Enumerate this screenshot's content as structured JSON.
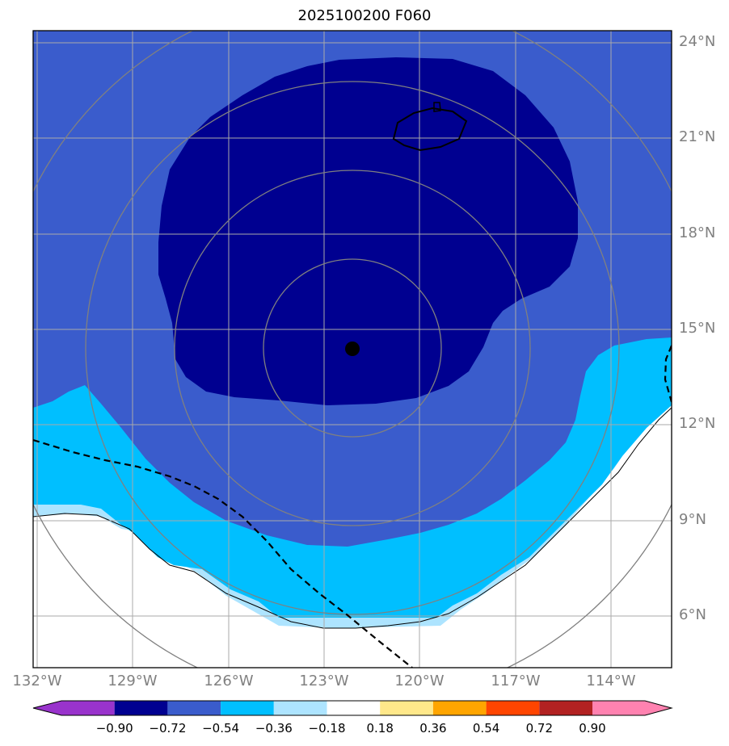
{
  "title": "2025100200 F060",
  "colors": {
    "deep_navy": "#000090",
    "royal_blue": "#3a5ccc",
    "cyan": "#00bfff",
    "light_blue": "#ade4ff",
    "background": "#ffffff",
    "grid": "#aaaaaa",
    "range_ring": "#808080"
  },
  "lat_labels": [
    "24°N",
    "21°N",
    "18°N",
    "15°N",
    "12°N",
    "9°N",
    "6°N"
  ],
  "lon_labels": [
    "132°W",
    "129°W",
    "126°W",
    "123°W",
    "120°W",
    "117°W",
    "114°W"
  ],
  "colorbar": {
    "ticks": [
      "−0.90",
      "−0.72",
      "−0.54",
      "−0.36",
      "−0.18",
      "0.18",
      "0.36",
      "0.54",
      "0.72",
      "0.90"
    ],
    "colors": [
      "#9933cc",
      "#000090",
      "#3a5ccc",
      "#00bfff",
      "#ade4ff",
      "#ffffff",
      "#ffe88a",
      "#ffa500",
      "#ff4500",
      "#b22222",
      "#ff82b0"
    ]
  },
  "storm_center": {
    "lat": "14.4°N",
    "lon": "122.2°W",
    "marker": "storm-center-dot"
  }
}
